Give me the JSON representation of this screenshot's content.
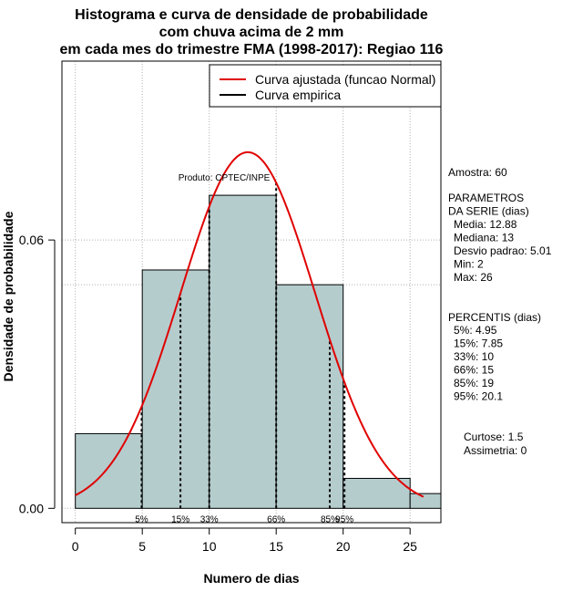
{
  "chart_data": {
    "type": "histogram",
    "title": [
      "Histograma e curva de densidade de probabilidade",
      "com chuva acima de 2 mm",
      "em cada mes do trimestre FMA (1998-2017): Regiao 116"
    ],
    "xlabel": "Numero de dias",
    "ylabel": "Densidade de probabilidade",
    "xlim": [
      -1,
      27.3
    ],
    "ylim": [
      -0.0032,
      0.1
    ],
    "xticks": [
      0,
      5,
      10,
      15,
      20,
      25
    ],
    "yticks": [
      0.0,
      0.06
    ],
    "ytick_labels": [
      "0.00",
      "0.06"
    ],
    "grid_x": [
      0,
      5,
      10,
      15,
      20,
      25
    ],
    "grid_y": [
      0.0,
      0.06
    ],
    "grid_y_extra": [
      0.05,
      0.1
    ],
    "bins": [
      {
        "x0": 0,
        "x1": 5,
        "density": 0.0167
      },
      {
        "x0": 5,
        "x1": 10,
        "density": 0.0533
      },
      {
        "x0": 10,
        "x1": 15,
        "density": 0.07
      },
      {
        "x0": 15,
        "x1": 20,
        "density": 0.05
      },
      {
        "x0": 20,
        "x1": 25,
        "density": 0.0067
      },
      {
        "x0": 25,
        "x1": 27.3,
        "density": 0.0033
      }
    ],
    "normal_fit": {
      "mean": 12.88,
      "sd": 5.01,
      "x_from": 0,
      "x_to": 26
    },
    "percentile_lines": [
      {
        "x": 4.95,
        "label": "5%"
      },
      {
        "x": 7.85,
        "label": "15%"
      },
      {
        "x": 10,
        "label": "33%"
      },
      {
        "x": 15,
        "label": "66%"
      },
      {
        "x": 19,
        "label": "85%"
      },
      {
        "x": 20.1,
        "label": "95%"
      }
    ],
    "legend": [
      {
        "label": "Curva ajustada (funcao Normal)",
        "color": "#e00000"
      },
      {
        "label": "Curva empirica",
        "color": "#000000"
      }
    ],
    "product_label": "Produto: CPTEC/INPE",
    "colors": {
      "bar_fill": "#b5cccd",
      "bar_stroke": "#000000",
      "curve": "#e00000",
      "grid": "#b0b0b0"
    }
  },
  "stats": {
    "amostra": "Amostra: 60",
    "parametros_header": [
      " PARAMETROS",
      "DA SERIE (dias)"
    ],
    "parametros": [
      "Media: 12.88",
      "Mediana: 13",
      "Desvio padrao: 5.01",
      "Min: 2",
      "Max: 26"
    ],
    "percentis_header": "PERCENTIS (dias)",
    "percentis": [
      "5%: 4.95",
      "15%: 7.85",
      "33%: 10",
      "66%: 15",
      "85%: 19",
      "95%: 20.1"
    ],
    "curtose": "Curtose: 1.5",
    "assimetria": "Assimetria: 0"
  }
}
